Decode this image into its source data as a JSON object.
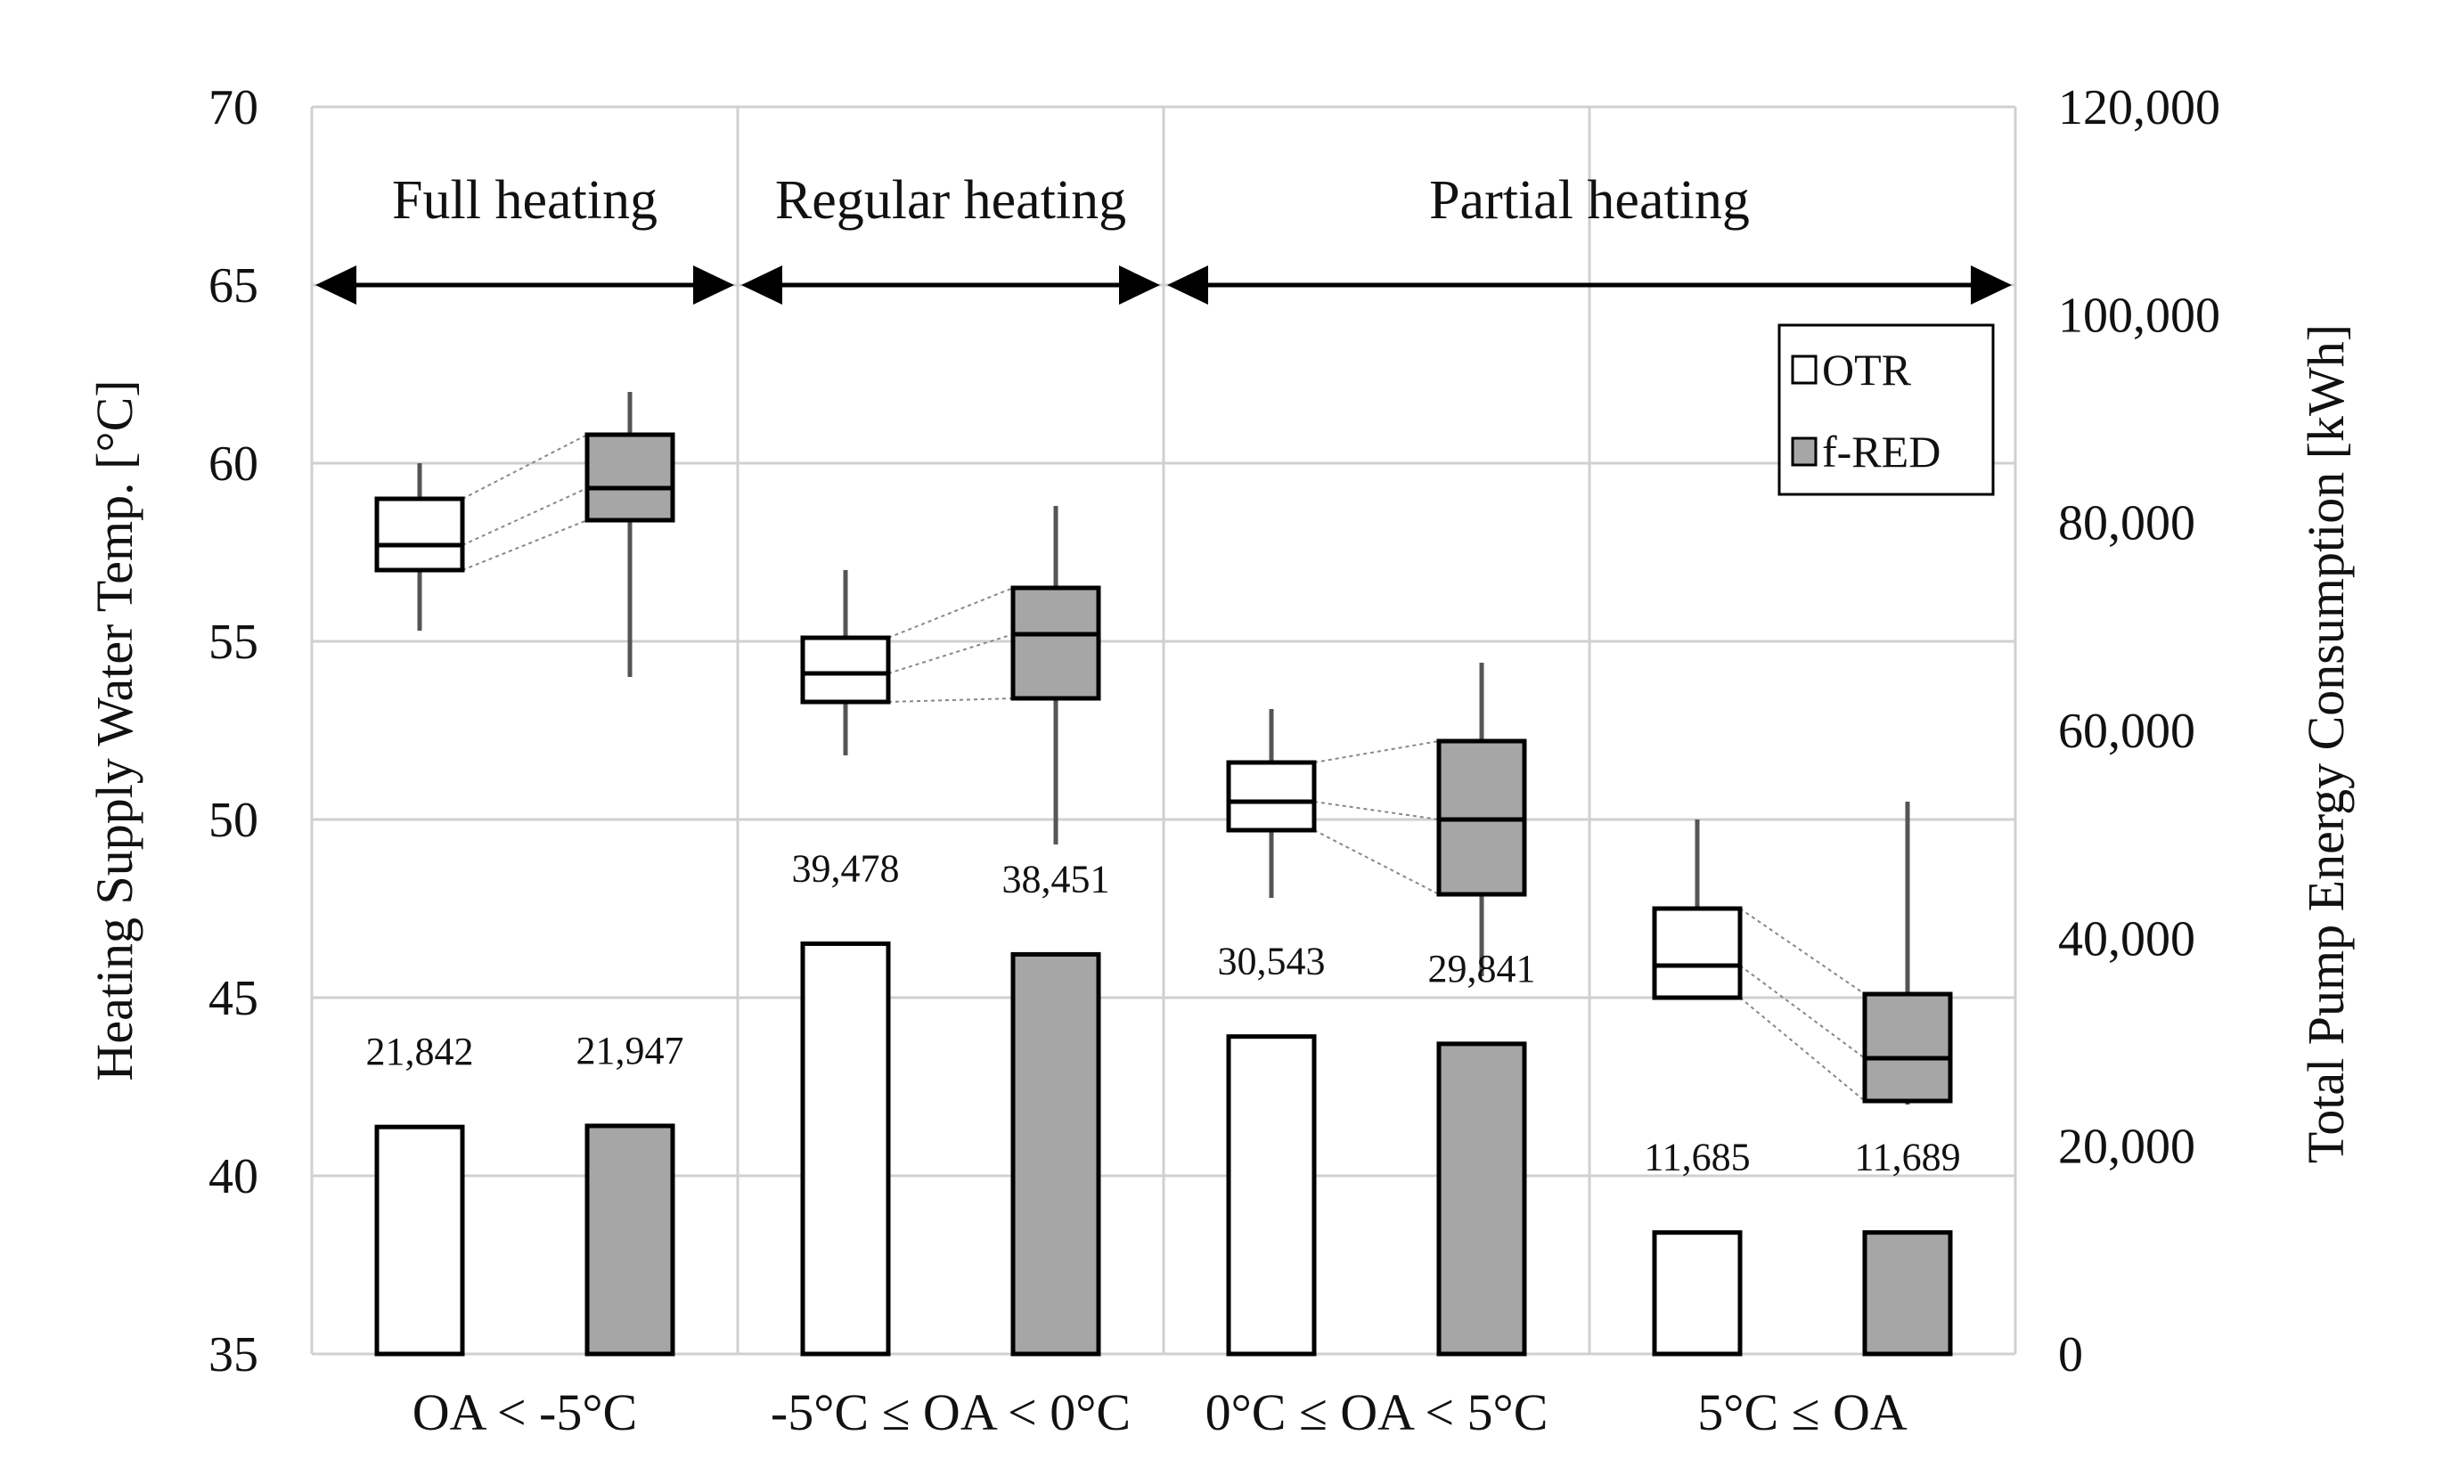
{
  "chart_data": {
    "type": "bar+boxplot",
    "categories": [
      "OA < -5°C",
      "-5°C ≤ OA < 0°C",
      "0°C ≤ OA < 5°C",
      "5°C ≤ OA"
    ],
    "series_names": [
      "OTR",
      "f-RED"
    ],
    "left_axis": {
      "label": "Heating Supply Water Temp. [°C]",
      "range": [
        35,
        70
      ],
      "ticks": [
        "35",
        "40",
        "45",
        "50",
        "55",
        "60",
        "65",
        "70"
      ]
    },
    "right_axis": {
      "label": "Total Pump Energy Consumption [kWh]",
      "range": [
        0,
        120000
      ],
      "ticks": [
        "0",
        "20,000",
        "40,000",
        "60,000",
        "80,000",
        "100,000",
        "120,000"
      ]
    },
    "bars": [
      {
        "category": 0,
        "series": "OTR",
        "value": 21842,
        "label": "21,842"
      },
      {
        "category": 0,
        "series": "f-RED",
        "value": 21947,
        "label": "21,947"
      },
      {
        "category": 1,
        "series": "OTR",
        "value": 39478,
        "label": "39,478"
      },
      {
        "category": 1,
        "series": "f-RED",
        "value": 38451,
        "label": "38,451"
      },
      {
        "category": 2,
        "series": "OTR",
        "value": 30543,
        "label": "30,543"
      },
      {
        "category": 2,
        "series": "f-RED",
        "value": 29841,
        "label": "29,841"
      },
      {
        "category": 3,
        "series": "OTR",
        "value": 11685,
        "label": "11,685"
      },
      {
        "category": 3,
        "series": "f-RED",
        "value": 11689,
        "label": "11,689"
      }
    ],
    "boxes": [
      {
        "category": 0,
        "series": "OTR",
        "min": 55.3,
        "q1": 57.0,
        "median": 57.7,
        "q3": 59.0,
        "max": 60.0
      },
      {
        "category": 0,
        "series": "f-RED",
        "min": 54.0,
        "q1": 58.4,
        "median": 59.3,
        "q3": 60.8,
        "max": 62.0
      },
      {
        "category": 1,
        "series": "OTR",
        "min": 51.8,
        "q1": 53.3,
        "median": 54.1,
        "q3": 55.1,
        "max": 57.0
      },
      {
        "category": 1,
        "series": "f-RED",
        "min": 49.3,
        "q1": 53.4,
        "median": 55.2,
        "q3": 56.5,
        "max": 58.8
      },
      {
        "category": 2,
        "series": "OTR",
        "min": 47.8,
        "q1": 49.7,
        "median": 50.5,
        "q3": 51.6,
        "max": 53.1
      },
      {
        "category": 2,
        "series": "f-RED",
        "min": 45.6,
        "q1": 47.9,
        "median": 50.0,
        "q3": 52.2,
        "max": 54.4
      },
      {
        "category": 3,
        "series": "OTR",
        "min": 45.0,
        "q1": 45.0,
        "median": 45.9,
        "q3": 47.5,
        "max": 50.0
      },
      {
        "category": 3,
        "series": "f-RED",
        "min": 42.0,
        "q1": 42.1,
        "median": 43.3,
        "q3": 45.1,
        "max": 50.5
      }
    ],
    "regions": [
      {
        "label": "Full heating",
        "from": 0,
        "to": 1
      },
      {
        "label": "Regular heating",
        "from": 1,
        "to": 2
      },
      {
        "label": "Partial heating",
        "from": 2,
        "to": 4
      }
    ],
    "legend": {
      "position": "top-right",
      "items": [
        "OTR",
        "f-RED"
      ]
    },
    "grid": true
  },
  "colors": {
    "otr_fill": "#ffffff",
    "fred_fill": "#a6a6a6",
    "outline": "#000000",
    "grid": "#d0d0d0",
    "whisker": "#555555"
  }
}
